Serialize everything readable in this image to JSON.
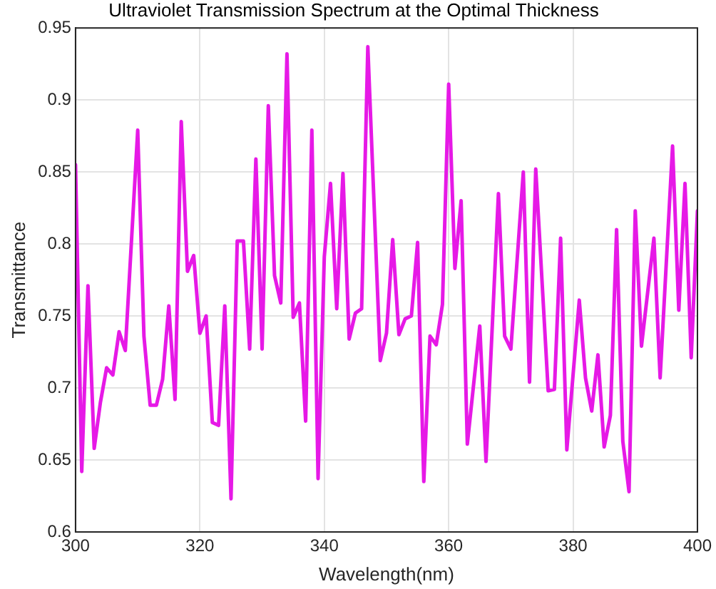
{
  "chart_data": {
    "type": "line",
    "title": "Ultraviolet Transmission Spectrum at the Optimal Thickness",
    "xlabel": "Wavelength(nm)",
    "ylabel": "Transmittance",
    "x": [
      300,
      301,
      302,
      303,
      304,
      305,
      306,
      307,
      308,
      310,
      311,
      312,
      313,
      314,
      315,
      316,
      317,
      318,
      319,
      320,
      321,
      322,
      323,
      324,
      325,
      326,
      327,
      328,
      329,
      330,
      331,
      332,
      333,
      334,
      335,
      336,
      337,
      338,
      339,
      340,
      341,
      342,
      343,
      344,
      345,
      346,
      347,
      349,
      350,
      351,
      352,
      353,
      354,
      355,
      356,
      357,
      358,
      359,
      360,
      361,
      362,
      363,
      365,
      366,
      368,
      369,
      370,
      372,
      373,
      374,
      376,
      377,
      378,
      379,
      381,
      382,
      383,
      384,
      385,
      386,
      387,
      388,
      389,
      390,
      391,
      393,
      394,
      396,
      397,
      398,
      399,
      400
    ],
    "series": [
      {
        "color": "#e619e6",
        "values": [
          0.855,
          0.642,
          0.771,
          0.658,
          0.69,
          0.714,
          0.709,
          0.739,
          0.726,
          0.879,
          0.736,
          0.688,
          0.688,
          0.706,
          0.757,
          0.692,
          0.885,
          0.781,
          0.792,
          0.738,
          0.75,
          0.676,
          0.674,
          0.757,
          0.623,
          0.802,
          0.802,
          0.727,
          0.859,
          0.727,
          0.896,
          0.778,
          0.759,
          0.932,
          0.749,
          0.759,
          0.677,
          0.879,
          0.637,
          0.791,
          0.842,
          0.755,
          0.849,
          0.734,
          0.752,
          0.755,
          0.937,
          0.719,
          0.738,
          0.803,
          0.737,
          0.748,
          0.75,
          0.801,
          0.635,
          0.736,
          0.73,
          0.758,
          0.911,
          0.783,
          0.83,
          0.661,
          0.743,
          0.649,
          0.835,
          0.736,
          0.727,
          0.85,
          0.704,
          0.852,
          0.698,
          0.699,
          0.804,
          0.657,
          0.761,
          0.707,
          0.684,
          0.723,
          0.659,
          0.681,
          0.81,
          0.663,
          0.628,
          0.823,
          0.729,
          0.804,
          0.707,
          0.868,
          0.754,
          0.842,
          0.721,
          0.823
        ]
      }
    ],
    "xlim": [
      300,
      400
    ],
    "xticks": [
      300,
      320,
      340,
      360,
      380,
      400
    ],
    "ylim": [
      0.6,
      0.95
    ],
    "yticks": [
      0.6,
      0.65,
      0.7,
      0.75,
      0.8,
      0.85,
      0.9,
      0.95
    ],
    "grid": true,
    "legend": false,
    "marker": "none",
    "line_style": "solid"
  }
}
